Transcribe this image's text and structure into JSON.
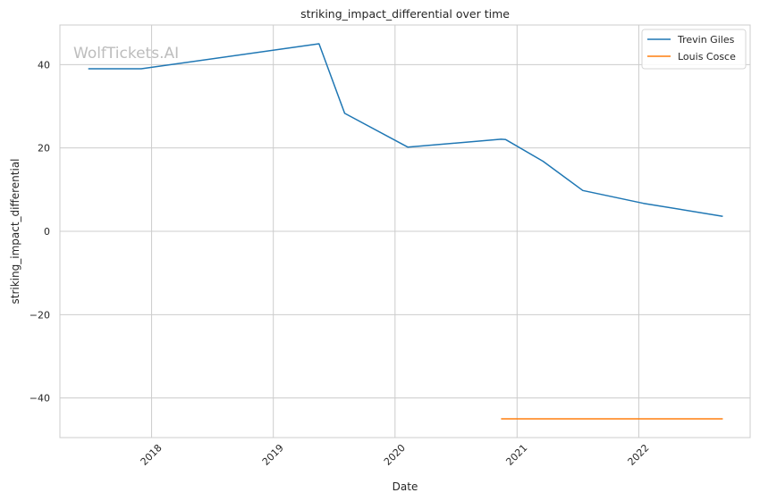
{
  "chart_data": {
    "type": "line",
    "title": "striking_impact_differential over time",
    "xlabel": "Date",
    "ylabel": "striking_impact_differential",
    "watermark": "WolfTickets.AI",
    "x_ticks": [
      "2018",
      "2019",
      "2020",
      "2021",
      "2022"
    ],
    "y_ticks": [
      40,
      20,
      0,
      -20,
      -40
    ],
    "xlim": [
      "2017-04-01",
      "2022-12-01"
    ],
    "ylim": [
      -49.5,
      49.5
    ],
    "grid": true,
    "legend_position": "top-right",
    "series": [
      {
        "name": "Trevin Giles",
        "color": "#1f77b4",
        "points": [
          {
            "x": "2017-06-25",
            "y": 39.0
          },
          {
            "x": "2017-12-01",
            "y": 39.0
          },
          {
            "x": "2019-05-18",
            "y": 45.0
          },
          {
            "x": "2019-08-03",
            "y": 28.3
          },
          {
            "x": "2020-02-08",
            "y": 20.2
          },
          {
            "x": "2020-11-14",
            "y": 22.1
          },
          {
            "x": "2020-11-28",
            "y": 22.0
          },
          {
            "x": "2021-03-20",
            "y": 16.8
          },
          {
            "x": "2021-07-17",
            "y": 9.8
          },
          {
            "x": "2022-01-15",
            "y": 6.7
          },
          {
            "x": "2022-09-10",
            "y": 3.6
          }
        ]
      },
      {
        "name": "Louis Cosce",
        "color": "#ff7f0e",
        "points": [
          {
            "x": "2020-11-14",
            "y": -45.0
          },
          {
            "x": "2022-09-10",
            "y": -45.0
          }
        ]
      }
    ]
  }
}
